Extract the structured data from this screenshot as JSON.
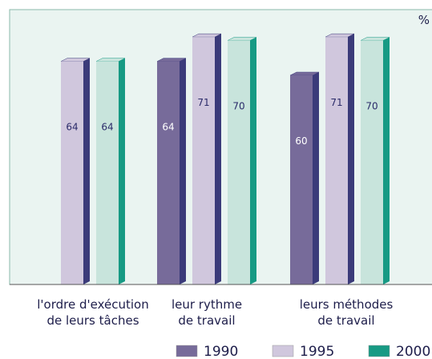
{
  "chart_data": {
    "type": "bar3d",
    "unit": "%",
    "categories": [
      [
        "l'ordre d'exécution",
        "de leurs tâches"
      ],
      [
        "leur rythme",
        "de travail"
      ],
      [
        "leurs méthodes",
        "de travail"
      ]
    ],
    "series": [
      {
        "name": "1990",
        "color": "#776b9a",
        "side": "#3b3b7a",
        "label_color": "#ffffff",
        "values": [
          null,
          64,
          60
        ]
      },
      {
        "name": "1995",
        "color": "#d0c7dd",
        "side": "#3b3b7a",
        "label_color": "#2b2b6a",
        "values": [
          64,
          71,
          71
        ]
      },
      {
        "name": "2000",
        "color": "#c8e4dc",
        "side": "#179a84",
        "label_color": "#2b2b6a",
        "values": [
          64,
          70,
          70
        ]
      }
    ],
    "ylim": [
      0,
      80
    ]
  }
}
